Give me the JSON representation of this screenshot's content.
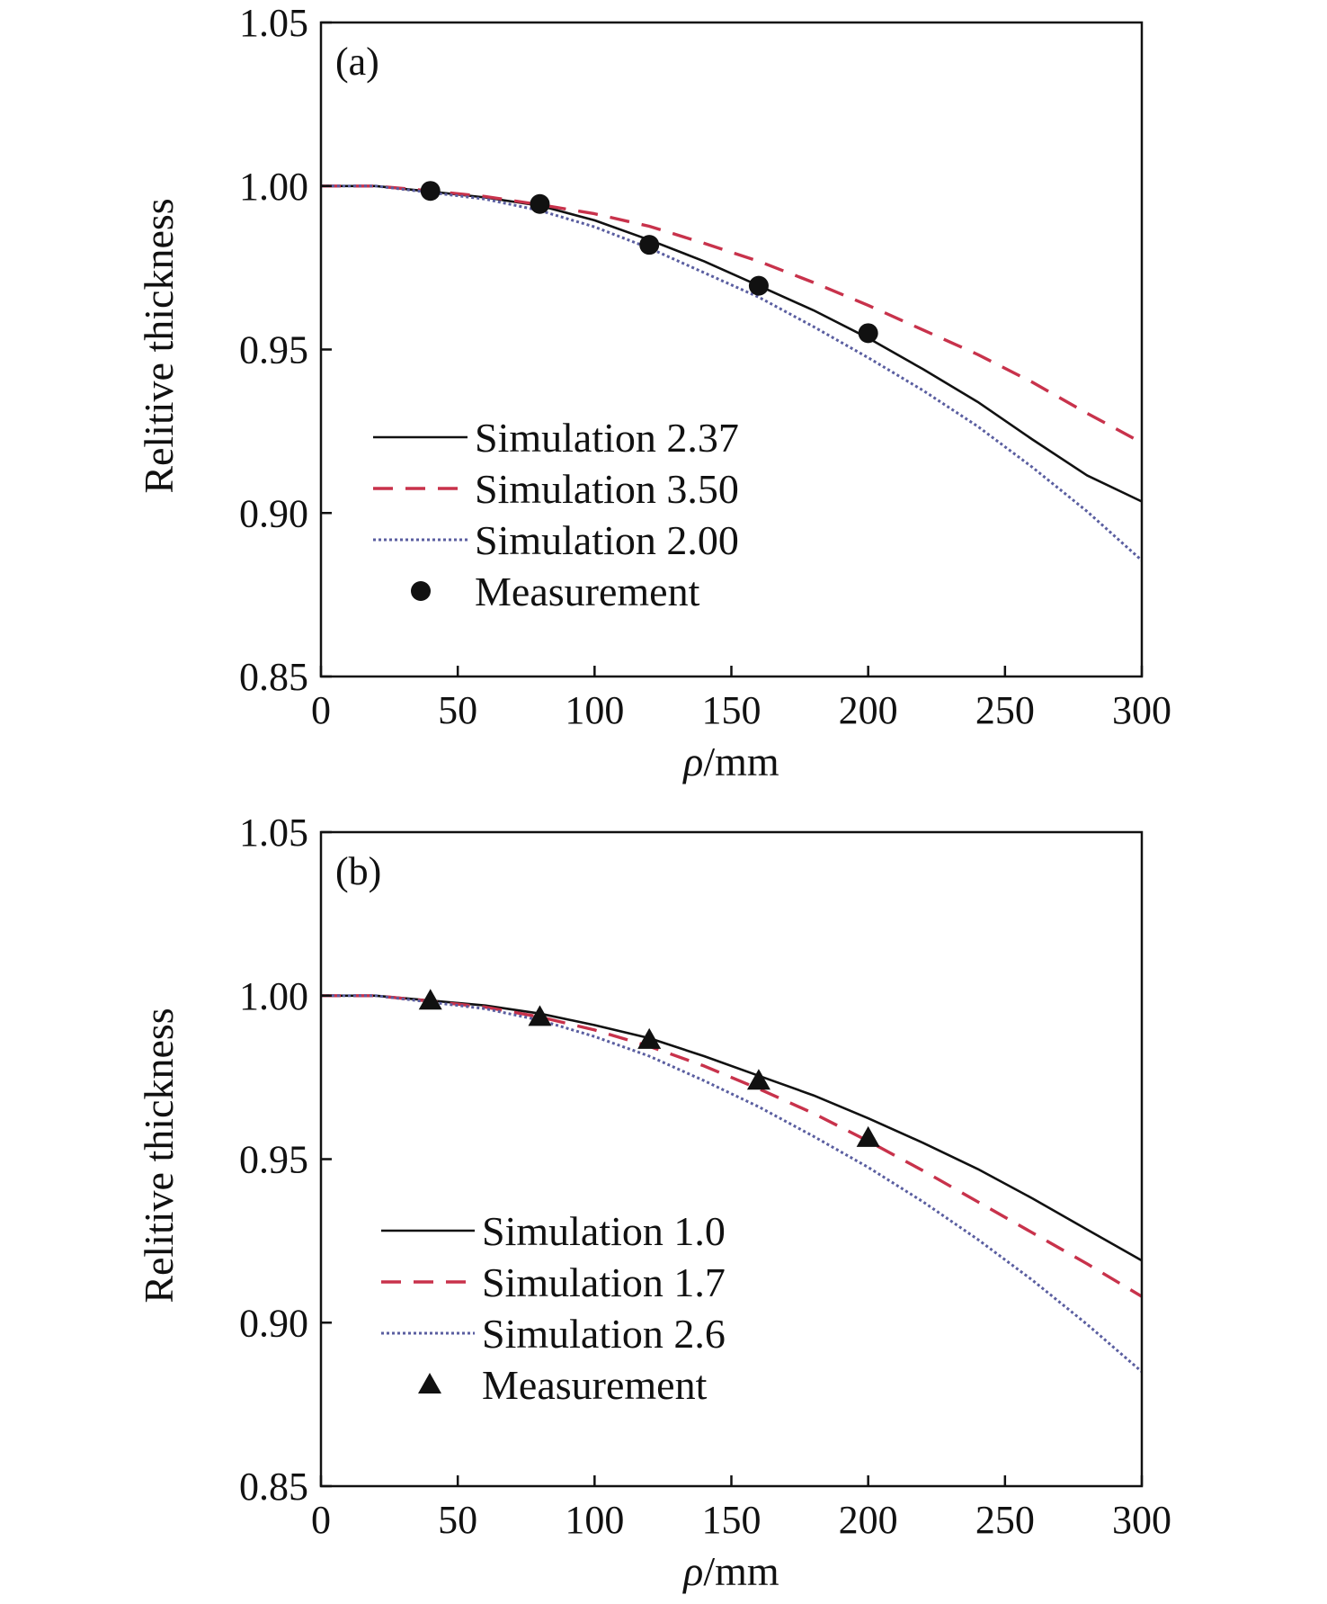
{
  "chart_data": [
    {
      "type": "line",
      "panel_label": "(a)",
      "xlabel_symbol": "ρ",
      "xlabel_unit": "/mm",
      "ylabel": "Relitive thickness",
      "xlim": [
        0,
        300
      ],
      "ylim": [
        0.85,
        1.05
      ],
      "xticks": [
        "0",
        "50",
        "100",
        "150",
        "200",
        "250",
        "300"
      ],
      "yticks": [
        "0.85",
        "0.90",
        "0.95",
        "1.00",
        "1.05"
      ],
      "grid": false,
      "legend_position": "lower-left",
      "series": [
        {
          "name": "Simulation 2.37",
          "style": "solid",
          "color": "#111111",
          "x": [
            0,
            20,
            40,
            60,
            80,
            100,
            120,
            140,
            160,
            180,
            200,
            220,
            240,
            260,
            280,
            300
          ],
          "y": [
            1.0,
            1.0,
            0.9983,
            0.9965,
            0.994,
            0.9895,
            0.9835,
            0.977,
            0.9695,
            0.962,
            0.9535,
            0.944,
            0.934,
            0.9225,
            0.9115,
            0.9035
          ]
        },
        {
          "name": "Simulation 3.50",
          "style": "dashed",
          "color": "#c8324b",
          "x": [
            0,
            20,
            40,
            60,
            80,
            100,
            120,
            140,
            160,
            180,
            200,
            220,
            240,
            260,
            280,
            300
          ],
          "y": [
            1.0,
            1.0,
            0.9985,
            0.9968,
            0.9943,
            0.9915,
            0.9877,
            0.9825,
            0.977,
            0.9705,
            0.9635,
            0.956,
            0.9485,
            0.94,
            0.9305,
            0.9215
          ]
        },
        {
          "name": "Simulation 2.00",
          "style": "dotted",
          "color": "#5a5ea0",
          "x": [
            0,
            20,
            40,
            60,
            80,
            100,
            120,
            140,
            160,
            180,
            200,
            220,
            240,
            260,
            280,
            300
          ],
          "y": [
            1.0,
            1.0,
            0.998,
            0.996,
            0.9925,
            0.9875,
            0.981,
            0.9735,
            0.966,
            0.957,
            0.9475,
            0.9375,
            0.9265,
            0.914,
            0.9005,
            0.8855
          ]
        },
        {
          "name": "Measurement",
          "style": "markers",
          "marker": "circle",
          "color": "#111111",
          "x": [
            40,
            80,
            120,
            160,
            200
          ],
          "y": [
            0.9985,
            0.9945,
            0.982,
            0.9695,
            0.955
          ]
        }
      ]
    },
    {
      "type": "line",
      "panel_label": "(b)",
      "xlabel_symbol": "ρ",
      "xlabel_unit": "/mm",
      "ylabel": "Relitive thickness",
      "xlim": [
        0,
        300
      ],
      "ylim": [
        0.85,
        1.05
      ],
      "xticks": [
        "0",
        "50",
        "100",
        "150",
        "200",
        "250",
        "300"
      ],
      "yticks": [
        "0.85",
        "0.90",
        "0.95",
        "1.00",
        "1.05"
      ],
      "grid": false,
      "legend_position": "lower-left",
      "series": [
        {
          "name": "Simulation 1.0",
          "style": "solid",
          "color": "#111111",
          "x": [
            0,
            20,
            40,
            60,
            80,
            100,
            120,
            140,
            160,
            180,
            200,
            220,
            240,
            260,
            280,
            300
          ],
          "y": [
            1.0,
            1.0,
            0.9985,
            0.997,
            0.9945,
            0.991,
            0.987,
            0.9815,
            0.9755,
            0.9695,
            0.9625,
            0.955,
            0.947,
            0.938,
            0.9285,
            0.919
          ]
        },
        {
          "name": "Simulation 1.7",
          "style": "dashed",
          "color": "#c8324b",
          "x": [
            0,
            20,
            40,
            60,
            80,
            100,
            120,
            140,
            160,
            180,
            200,
            220,
            240,
            260,
            280,
            300
          ],
          "y": [
            1.0,
            1.0,
            0.9983,
            0.9965,
            0.9935,
            0.9895,
            0.9845,
            0.9785,
            0.9715,
            0.964,
            0.9555,
            0.9465,
            0.937,
            0.9275,
            0.918,
            0.908
          ]
        },
        {
          "name": "Simulation 2.6",
          "style": "dotted",
          "color": "#5a5ea0",
          "x": [
            0,
            20,
            40,
            60,
            80,
            100,
            120,
            140,
            160,
            180,
            200,
            220,
            240,
            260,
            280,
            300
          ],
          "y": [
            1.0,
            1.0,
            0.998,
            0.996,
            0.9925,
            0.9875,
            0.9815,
            0.974,
            0.966,
            0.957,
            0.9475,
            0.937,
            0.9255,
            0.913,
            0.8995,
            0.885
          ]
        },
        {
          "name": "Measurement",
          "style": "markers",
          "marker": "triangle",
          "color": "#111111",
          "x": [
            40,
            80,
            120,
            160,
            200
          ],
          "y": [
            0.9985,
            0.9935,
            0.9865,
            0.974,
            0.9565
          ]
        }
      ]
    }
  ]
}
